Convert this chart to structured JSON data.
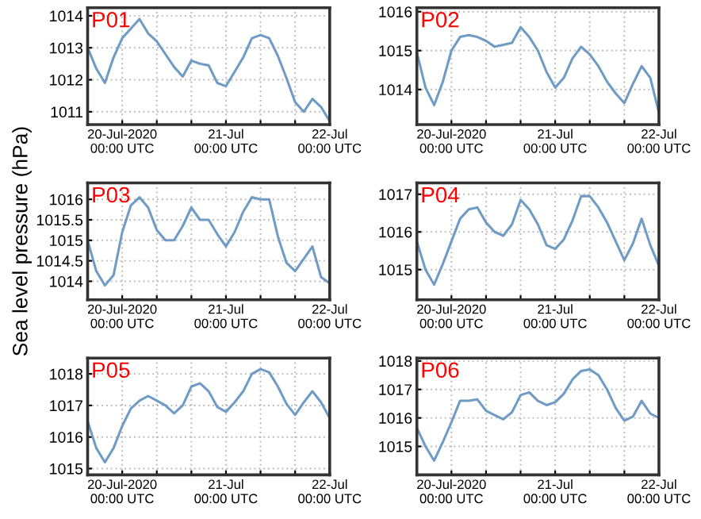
{
  "chart_data": [
    {
      "type": "line",
      "annotations": [
        "P01"
      ],
      "color": "#6f9bc4",
      "grid": true,
      "xlim": [
        "2020-07-19T16:00",
        "2020-07-22T00:00"
      ],
      "xticks": [
        {
          "value": "2020-07-20T00:00",
          "label": "20-Jul-2020\n00:00 UTC"
        },
        {
          "value": "2020-07-20T08:00",
          "label": null
        },
        {
          "value": "2020-07-20T16:00",
          "label": null
        },
        {
          "value": "2020-07-21T00:00",
          "label": "21-Jul\n00:00 UTC"
        },
        {
          "value": "2020-07-21T08:00",
          "label": null
        },
        {
          "value": "2020-07-21T16:00",
          "label": null
        },
        {
          "value": "2020-07-22T00:00",
          "label": "22-Jul\n00:00 UTC"
        }
      ],
      "ylim": [
        1010.6,
        1014.25
      ],
      "yticks": [
        1011,
        1012,
        1013,
        1014
      ],
      "x": [
        "2020-07-19T16:00",
        "2020-07-19T18:00",
        "2020-07-19T20:00",
        "2020-07-19T22:00",
        "2020-07-20T00:00",
        "2020-07-20T02:00",
        "2020-07-20T04:00",
        "2020-07-20T06:00",
        "2020-07-20T08:00",
        "2020-07-20T10:00",
        "2020-07-20T12:00",
        "2020-07-20T14:00",
        "2020-07-20T16:00",
        "2020-07-20T18:00",
        "2020-07-20T20:00",
        "2020-07-20T22:00",
        "2020-07-21T00:00",
        "2020-07-21T02:00",
        "2020-07-21T04:00",
        "2020-07-21T06:00",
        "2020-07-21T08:00",
        "2020-07-21T10:00",
        "2020-07-21T12:00",
        "2020-07-21T14:00",
        "2020-07-21T16:00",
        "2020-07-21T18:00",
        "2020-07-21T20:00",
        "2020-07-21T22:00",
        "2020-07-22T00:00"
      ],
      "values": [
        1013.0,
        1012.35,
        1011.9,
        1012.7,
        1013.3,
        1013.6,
        1013.9,
        1013.45,
        1013.2,
        1012.8,
        1012.4,
        1012.1,
        1012.6,
        1012.5,
        1012.45,
        1011.9,
        1011.8,
        1012.25,
        1012.7,
        1013.3,
        1013.4,
        1013.3,
        1012.75,
        1012.05,
        1011.3,
        1011.0,
        1011.4,
        1011.15,
        1010.7
      ]
    },
    {
      "type": "line",
      "annotations": [
        "P02"
      ],
      "color": "#6f9bc4",
      "grid": true,
      "xlim": [
        "2020-07-19T16:00",
        "2020-07-22T00:00"
      ],
      "xticks": [
        {
          "value": "2020-07-20T00:00",
          "label": "20-Jul-2020\n00:00 UTC"
        },
        {
          "value": "2020-07-20T08:00",
          "label": null
        },
        {
          "value": "2020-07-20T16:00",
          "label": null
        },
        {
          "value": "2020-07-21T00:00",
          "label": "21-Jul\n00:00 UTC"
        },
        {
          "value": "2020-07-21T08:00",
          "label": null
        },
        {
          "value": "2020-07-21T16:00",
          "label": null
        },
        {
          "value": "2020-07-22T00:00",
          "label": "22-Jul\n00:00 UTC"
        }
      ],
      "ylim": [
        1013.1,
        1016.1
      ],
      "yticks": [
        1014,
        1015,
        1016
      ],
      "x": [
        "2020-07-19T16:00",
        "2020-07-19T18:00",
        "2020-07-19T20:00",
        "2020-07-19T22:00",
        "2020-07-20T00:00",
        "2020-07-20T02:00",
        "2020-07-20T04:00",
        "2020-07-20T06:00",
        "2020-07-20T08:00",
        "2020-07-20T10:00",
        "2020-07-20T12:00",
        "2020-07-20T14:00",
        "2020-07-20T16:00",
        "2020-07-20T18:00",
        "2020-07-20T20:00",
        "2020-07-20T22:00",
        "2020-07-21T00:00",
        "2020-07-21T02:00",
        "2020-07-21T04:00",
        "2020-07-21T06:00",
        "2020-07-21T08:00",
        "2020-07-21T10:00",
        "2020-07-21T12:00",
        "2020-07-21T14:00",
        "2020-07-21T16:00",
        "2020-07-21T18:00",
        "2020-07-21T20:00",
        "2020-07-21T22:00",
        "2020-07-22T00:00"
      ],
      "values": [
        1014.95,
        1014.05,
        1013.6,
        1014.2,
        1015.0,
        1015.35,
        1015.4,
        1015.35,
        1015.25,
        1015.1,
        1015.15,
        1015.2,
        1015.6,
        1015.35,
        1015.0,
        1014.45,
        1014.05,
        1014.3,
        1014.8,
        1015.1,
        1014.9,
        1014.6,
        1014.2,
        1013.9,
        1013.65,
        1014.15,
        1014.6,
        1014.3,
        1013.4
      ]
    },
    {
      "type": "line",
      "annotations": [
        "P03"
      ],
      "ylabel": "Sea level pressure (hPa)",
      "color": "#6f9bc4",
      "grid": true,
      "xlim": [
        "2020-07-19T16:00",
        "2020-07-22T00:00"
      ],
      "xticks": [
        {
          "value": "2020-07-20T00:00",
          "label": "20-Jul-2020\n00:00 UTC"
        },
        {
          "value": "2020-07-20T08:00",
          "label": null
        },
        {
          "value": "2020-07-20T16:00",
          "label": null
        },
        {
          "value": "2020-07-21T00:00",
          "label": "21-Jul\n00:00 UTC"
        },
        {
          "value": "2020-07-21T08:00",
          "label": null
        },
        {
          "value": "2020-07-21T16:00",
          "label": null
        },
        {
          "value": "2020-07-22T00:00",
          "label": "22-Jul\n00:00 UTC"
        }
      ],
      "ylim": [
        1013.55,
        1016.4
      ],
      "yticks": [
        1014,
        1014.5,
        1015,
        1015.5,
        1016
      ],
      "x": [
        "2020-07-19T16:00",
        "2020-07-19T18:00",
        "2020-07-19T20:00",
        "2020-07-19T22:00",
        "2020-07-20T00:00",
        "2020-07-20T02:00",
        "2020-07-20T04:00",
        "2020-07-20T06:00",
        "2020-07-20T08:00",
        "2020-07-20T10:00",
        "2020-07-20T12:00",
        "2020-07-20T14:00",
        "2020-07-20T16:00",
        "2020-07-20T18:00",
        "2020-07-20T20:00",
        "2020-07-20T22:00",
        "2020-07-21T00:00",
        "2020-07-21T02:00",
        "2020-07-21T04:00",
        "2020-07-21T06:00",
        "2020-07-21T08:00",
        "2020-07-21T10:00",
        "2020-07-21T12:00",
        "2020-07-21T14:00",
        "2020-07-21T16:00",
        "2020-07-21T18:00",
        "2020-07-21T20:00",
        "2020-07-21T22:00",
        "2020-07-22T00:00"
      ],
      "values": [
        1015.0,
        1014.25,
        1013.9,
        1014.15,
        1015.2,
        1015.85,
        1016.05,
        1015.8,
        1015.25,
        1015.0,
        1015.0,
        1015.35,
        1015.8,
        1015.5,
        1015.5,
        1015.15,
        1014.85,
        1015.2,
        1015.7,
        1016.05,
        1016.0,
        1016.0,
        1015.1,
        1014.45,
        1014.25,
        1014.55,
        1014.85,
        1014.1,
        1013.95
      ]
    },
    {
      "type": "line",
      "annotations": [
        "P04"
      ],
      "color": "#6f9bc4",
      "grid": true,
      "xlim": [
        "2020-07-19T16:00",
        "2020-07-22T00:00"
      ],
      "xticks": [
        {
          "value": "2020-07-20T00:00",
          "label": "20-Jul-2020\n00:00 UTC"
        },
        {
          "value": "2020-07-20T08:00",
          "label": null
        },
        {
          "value": "2020-07-20T16:00",
          "label": null
        },
        {
          "value": "2020-07-21T00:00",
          "label": "21-Jul\n00:00 UTC"
        },
        {
          "value": "2020-07-21T08:00",
          "label": null
        },
        {
          "value": "2020-07-21T16:00",
          "label": null
        },
        {
          "value": "2020-07-22T00:00",
          "label": "22-Jul\n00:00 UTC"
        }
      ],
      "ylim": [
        1014.2,
        1017.3
      ],
      "yticks": [
        1015,
        1016,
        1017
      ],
      "x": [
        "2020-07-19T16:00",
        "2020-07-19T18:00",
        "2020-07-19T20:00",
        "2020-07-19T22:00",
        "2020-07-20T00:00",
        "2020-07-20T02:00",
        "2020-07-20T04:00",
        "2020-07-20T06:00",
        "2020-07-20T08:00",
        "2020-07-20T10:00",
        "2020-07-20T12:00",
        "2020-07-20T14:00",
        "2020-07-20T16:00",
        "2020-07-20T18:00",
        "2020-07-20T20:00",
        "2020-07-20T22:00",
        "2020-07-21T00:00",
        "2020-07-21T02:00",
        "2020-07-21T04:00",
        "2020-07-21T06:00",
        "2020-07-21T08:00",
        "2020-07-21T10:00",
        "2020-07-21T12:00",
        "2020-07-21T14:00",
        "2020-07-21T16:00",
        "2020-07-21T18:00",
        "2020-07-21T20:00",
        "2020-07-21T22:00",
        "2020-07-22T00:00"
      ],
      "values": [
        1015.75,
        1015.0,
        1014.6,
        1015.15,
        1015.75,
        1016.35,
        1016.6,
        1016.65,
        1016.25,
        1016.0,
        1015.9,
        1016.2,
        1016.85,
        1016.6,
        1016.2,
        1015.65,
        1015.55,
        1015.8,
        1016.3,
        1016.95,
        1016.95,
        1016.65,
        1016.25,
        1015.75,
        1015.25,
        1015.7,
        1016.35,
        1015.65,
        1015.1
      ]
    },
    {
      "type": "line",
      "annotations": [
        "P05"
      ],
      "color": "#6f9bc4",
      "grid": true,
      "xlim": [
        "2020-07-19T16:00",
        "2020-07-22T00:00"
      ],
      "xticks": [
        {
          "value": "2020-07-20T00:00",
          "label": "20-Jul-2020\n00:00 UTC"
        },
        {
          "value": "2020-07-20T08:00",
          "label": null
        },
        {
          "value": "2020-07-20T16:00",
          "label": null
        },
        {
          "value": "2020-07-21T00:00",
          "label": "21-Jul\n00:00 UTC"
        },
        {
          "value": "2020-07-21T08:00",
          "label": null
        },
        {
          "value": "2020-07-21T16:00",
          "label": null
        },
        {
          "value": "2020-07-22T00:00",
          "label": "22-Jul\n00:00 UTC"
        }
      ],
      "ylim": [
        1014.8,
        1018.5
      ],
      "yticks": [
        1015,
        1016,
        1017,
        1018
      ],
      "x": [
        "2020-07-19T16:00",
        "2020-07-19T18:00",
        "2020-07-19T20:00",
        "2020-07-19T22:00",
        "2020-07-20T00:00",
        "2020-07-20T02:00",
        "2020-07-20T04:00",
        "2020-07-20T06:00",
        "2020-07-20T08:00",
        "2020-07-20T10:00",
        "2020-07-20T12:00",
        "2020-07-20T14:00",
        "2020-07-20T16:00",
        "2020-07-20T18:00",
        "2020-07-20T20:00",
        "2020-07-20T22:00",
        "2020-07-21T00:00",
        "2020-07-21T02:00",
        "2020-07-21T04:00",
        "2020-07-21T06:00",
        "2020-07-21T08:00",
        "2020-07-21T10:00",
        "2020-07-21T12:00",
        "2020-07-21T14:00",
        "2020-07-21T16:00",
        "2020-07-21T18:00",
        "2020-07-21T20:00",
        "2020-07-21T22:00",
        "2020-07-22T00:00"
      ],
      "values": [
        1016.5,
        1015.65,
        1015.2,
        1015.65,
        1016.35,
        1016.9,
        1017.15,
        1017.3,
        1017.15,
        1017.0,
        1016.75,
        1017.0,
        1017.6,
        1017.7,
        1017.45,
        1016.95,
        1016.8,
        1017.1,
        1017.45,
        1018.0,
        1018.15,
        1018.05,
        1017.6,
        1017.05,
        1016.7,
        1017.1,
        1017.45,
        1017.1,
        1016.6
      ]
    },
    {
      "type": "line",
      "annotations": [
        "P06"
      ],
      "color": "#6f9bc4",
      "grid": true,
      "xlim": [
        "2020-07-19T16:00",
        "2020-07-22T00:00"
      ],
      "xticks": [
        {
          "value": "2020-07-20T00:00",
          "label": "20-Jul-2020\n00:00 UTC"
        },
        {
          "value": "2020-07-20T08:00",
          "label": null
        },
        {
          "value": "2020-07-20T16:00",
          "label": null
        },
        {
          "value": "2020-07-21T00:00",
          "label": "21-Jul\n00:00 UTC"
        },
        {
          "value": "2020-07-21T08:00",
          "label": null
        },
        {
          "value": "2020-07-21T16:00",
          "label": null
        },
        {
          "value": "2020-07-22T00:00",
          "label": "22-Jul\n00:00 UTC"
        }
      ],
      "ylim": [
        1014.0,
        1018.1
      ],
      "yticks": [
        1015,
        1016,
        1017,
        1018
      ],
      "x": [
        "2020-07-19T16:00",
        "2020-07-19T18:00",
        "2020-07-19T20:00",
        "2020-07-19T22:00",
        "2020-07-20T00:00",
        "2020-07-20T02:00",
        "2020-07-20T04:00",
        "2020-07-20T06:00",
        "2020-07-20T08:00",
        "2020-07-20T10:00",
        "2020-07-20T12:00",
        "2020-07-20T14:00",
        "2020-07-20T16:00",
        "2020-07-20T18:00",
        "2020-07-20T20:00",
        "2020-07-20T22:00",
        "2020-07-21T00:00",
        "2020-07-21T02:00",
        "2020-07-21T04:00",
        "2020-07-21T06:00",
        "2020-07-21T08:00",
        "2020-07-21T10:00",
        "2020-07-21T12:00",
        "2020-07-21T14:00",
        "2020-07-21T16:00",
        "2020-07-21T18:00",
        "2020-07-21T20:00",
        "2020-07-21T22:00",
        "2020-07-22T00:00"
      ],
      "values": [
        1015.65,
        1015.0,
        1014.5,
        1015.15,
        1015.85,
        1016.6,
        1016.6,
        1016.65,
        1016.25,
        1016.1,
        1015.95,
        1016.2,
        1016.8,
        1016.9,
        1016.6,
        1016.45,
        1016.55,
        1016.85,
        1017.35,
        1017.65,
        1017.7,
        1017.5,
        1017.0,
        1016.35,
        1015.9,
        1016.05,
        1016.6,
        1016.15,
        1016.0
      ]
    }
  ]
}
